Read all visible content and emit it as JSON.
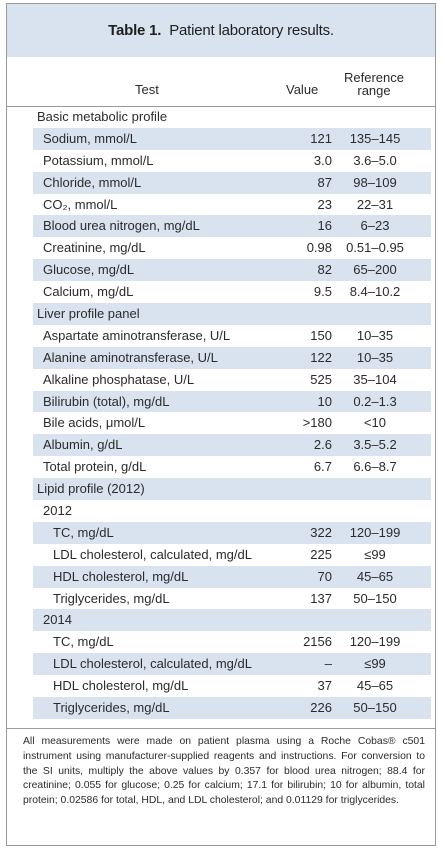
{
  "table": {
    "label": "Table 1.",
    "title": "Patient laboratory results."
  },
  "headers": {
    "test": "Test",
    "value": "Value",
    "reference_line1": "Reference",
    "reference_line2": "range"
  },
  "rows": [
    {
      "test": "Basic metabolic profile",
      "value": "",
      "ref": "",
      "kind": "sec",
      "shade": false
    },
    {
      "test": "Sodium, mmol/L",
      "value": "121",
      "ref": "135–145",
      "kind": "item",
      "shade": true
    },
    {
      "test": "Potassium, mmol/L",
      "value": "3.0",
      "ref": "3.6–5.0",
      "kind": "item",
      "shade": false
    },
    {
      "test": "Chloride, mmol/L",
      "value": "87",
      "ref": "98–109",
      "kind": "item",
      "shade": true
    },
    {
      "test": "CO₂, mmol/L",
      "value": "23",
      "ref": "22–31",
      "kind": "item",
      "shade": false
    },
    {
      "test": "Blood urea nitrogen, mg/dL",
      "value": "16",
      "ref": "6–23",
      "kind": "item",
      "shade": true
    },
    {
      "test": "Creatinine, mg/dL",
      "value": "0.98",
      "ref": "0.51–0.95",
      "kind": "item",
      "shade": false
    },
    {
      "test": "Glucose, mg/dL",
      "value": "82",
      "ref": "65–200",
      "kind": "item",
      "shade": true
    },
    {
      "test": "Calcium, mg/dL",
      "value": "9.5",
      "ref": "8.4–10.2",
      "kind": "item",
      "shade": false
    },
    {
      "test": "Liver profile panel",
      "value": "",
      "ref": "",
      "kind": "sec",
      "shade": true
    },
    {
      "test": "Aspartate aminotransferase, U/L",
      "value": "150",
      "ref": "10–35",
      "kind": "item",
      "shade": false
    },
    {
      "test": "Alanine aminotransferase, U/L",
      "value": "122",
      "ref": "10–35",
      "kind": "item",
      "shade": true
    },
    {
      "test": "Alkaline phosphatase, U/L",
      "value": "525",
      "ref": "35–104",
      "kind": "item",
      "shade": false
    },
    {
      "test": "Bilirubin (total), mg/dL",
      "value": "10",
      "ref": "0.2–1.3",
      "kind": "item",
      "shade": true
    },
    {
      "test": "Bile acids, μmol/L",
      "value": ">180",
      "ref": "<10",
      "kind": "item",
      "shade": false
    },
    {
      "test": "Albumin, g/dL",
      "value": "2.6",
      "ref": "3.5–5.2",
      "kind": "item",
      "shade": true
    },
    {
      "test": "Total protein, g/dL",
      "value": "6.7",
      "ref": "6.6–8.7",
      "kind": "item",
      "shade": false
    },
    {
      "test": "Lipid profile (2012)",
      "value": "",
      "ref": "",
      "kind": "sec",
      "shade": true
    },
    {
      "test": "2012",
      "value": "",
      "ref": "",
      "kind": "item",
      "shade": false
    },
    {
      "test": "TC, mg/dL",
      "value": "322",
      "ref": "120–199",
      "kind": "ind2",
      "shade": true
    },
    {
      "test": "LDL cholesterol, calculated, mg/dL",
      "value": "225",
      "ref": "≤99",
      "kind": "ind2",
      "shade": false
    },
    {
      "test": "HDL cholesterol, mg/dL",
      "value": "70",
      "ref": "45–65",
      "kind": "ind2",
      "shade": true
    },
    {
      "test": "Triglycerides, mg/dL",
      "value": "137",
      "ref": "50–150",
      "kind": "ind2",
      "shade": false
    },
    {
      "test": "2014",
      "value": "",
      "ref": "",
      "kind": "item",
      "shade": true
    },
    {
      "test": "TC, mg/dL",
      "value": "2156",
      "ref": "120–199",
      "kind": "ind2",
      "shade": false
    },
    {
      "test": "LDL cholesterol, calculated, mg/dL",
      "value": "–",
      "ref": "≤99",
      "kind": "ind2",
      "shade": true
    },
    {
      "test": "HDL cholesterol, mg/dL",
      "value": "37",
      "ref": "45–65",
      "kind": "ind2",
      "shade": false
    },
    {
      "test": "Triglycerides, mg/dL",
      "value": "226",
      "ref": "50–150",
      "kind": "ind2",
      "shade": true
    }
  ],
  "footnote": "All measurements were made on patient plasma using a Roche Cobas® c501 instrument using manufacturer-supplied reagents and instructions. For conversion to the SI units, multiply the above values by 0.357 for blood urea nitrogen; 88.4 for creatinine; 0.055 for glucose; 0.25 for calcium; 17.1 for bilirubin; 10 for albumin, total protein; 0.02586 for total, HDL, and LDL cholesterol; and 0.01129 for triglycerides."
}
